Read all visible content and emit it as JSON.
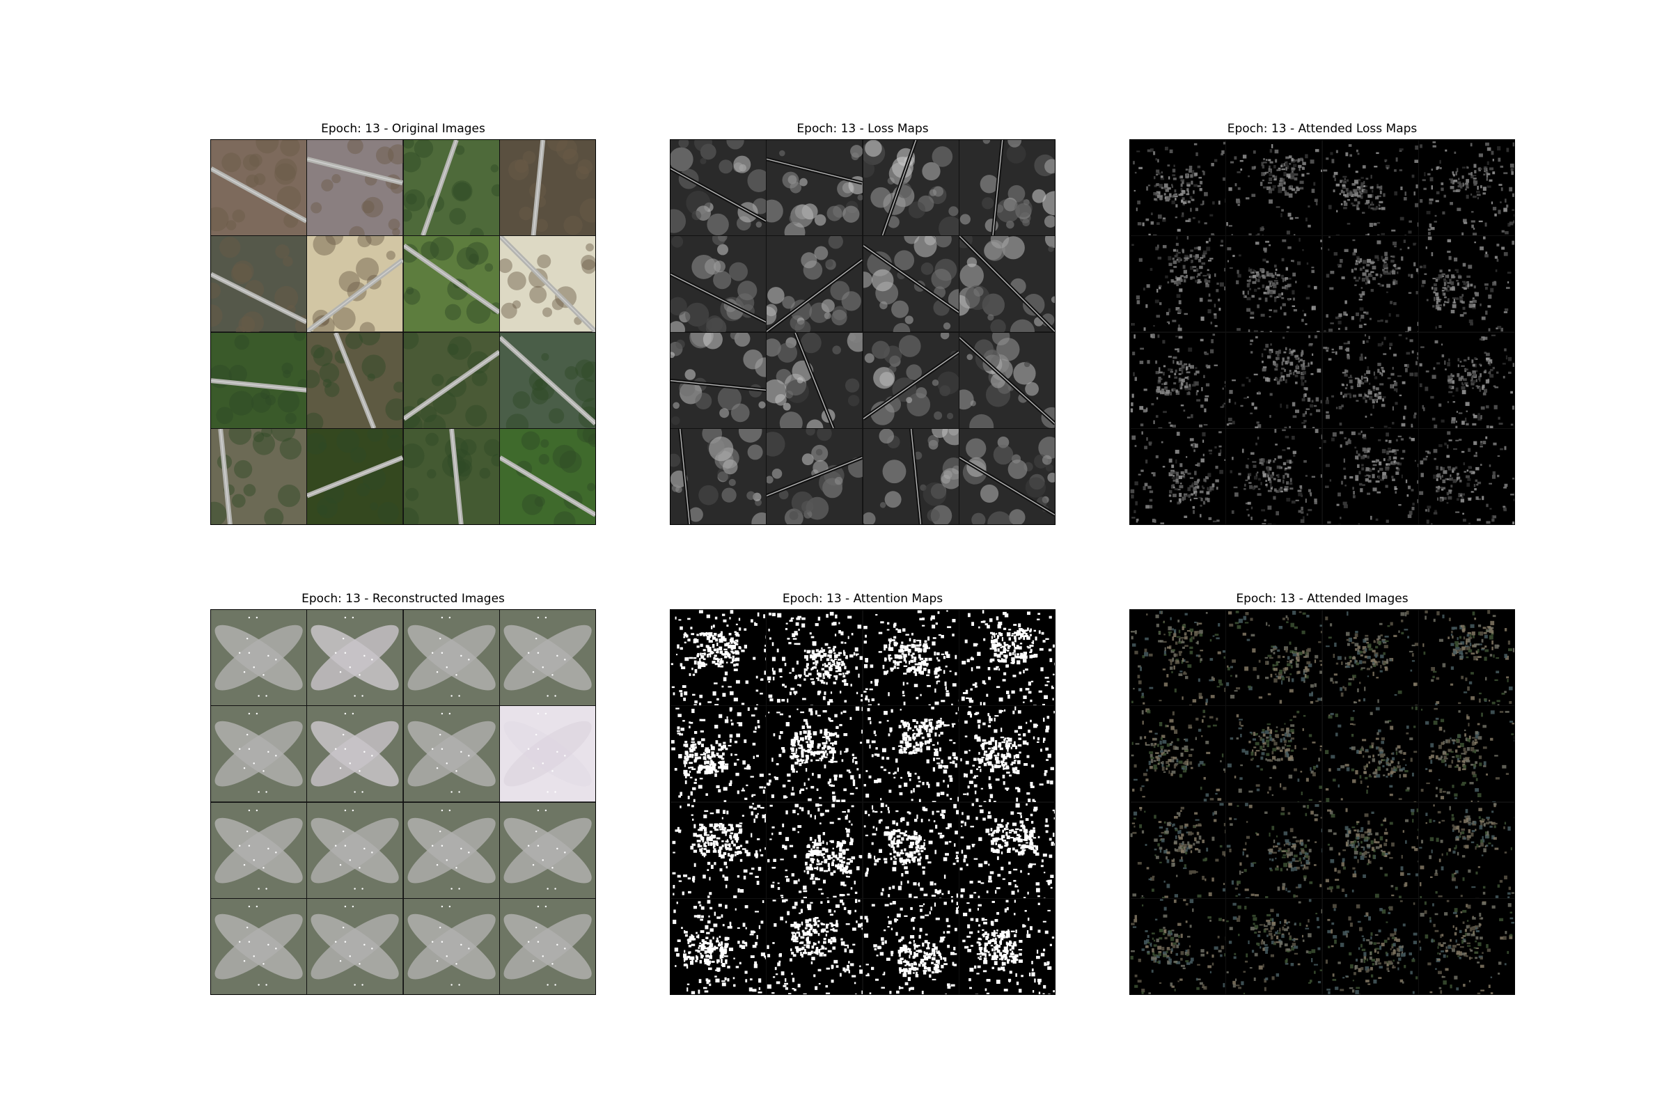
{
  "figure": {
    "panels": [
      {
        "key": "original",
        "title": "Epoch: 13 - Original Images",
        "kind": "original"
      },
      {
        "key": "loss",
        "title": "Epoch: 13 - Loss Maps",
        "kind": "loss"
      },
      {
        "key": "attended_loss",
        "title": "Epoch: 13 - Attended Loss Maps",
        "kind": "attloss"
      },
      {
        "key": "reconstructed",
        "title": "Epoch: 13 - Reconstructed Images",
        "kind": "recon"
      },
      {
        "key": "attention",
        "title": "Epoch: 13 - Attention Maps",
        "kind": "attention"
      },
      {
        "key": "attended_images",
        "title": "Epoch: 13 - Attended Images",
        "kind": "attimg"
      }
    ],
    "grid": {
      "rows": 4,
      "cols": 4
    },
    "colors": {
      "field_brown": "#7a6a5a",
      "grass_green": "#4f6b3a",
      "forest_green": "#2f4a25",
      "road_gray": "#9a9a9a",
      "sand_beige": "#d6ccb0",
      "recon_light": "#e4dde6",
      "recon_dark": "#3e4838",
      "mask_white": "#ffffff",
      "background_black": "#000000"
    }
  }
}
